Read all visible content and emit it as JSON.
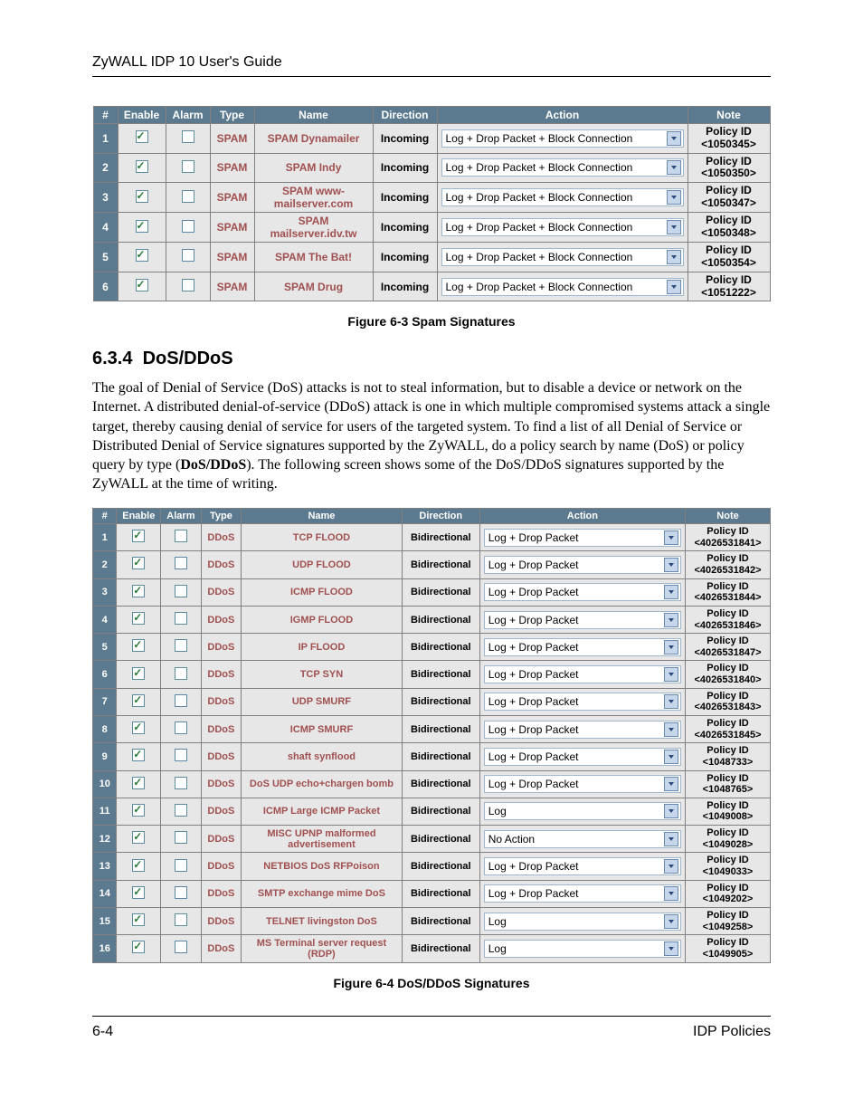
{
  "guide_title": "ZyWALL IDP 10 User's Guide",
  "headers": [
    "#",
    "Enable",
    "Alarm",
    "Type",
    "Name",
    "Direction",
    "Action",
    "Note"
  ],
  "spam_table": {
    "col_widths": {
      "num": 18,
      "enable": 44,
      "alarm": 40,
      "type": 40,
      "name": 122,
      "dir": 62,
      "action": 268,
      "note": 82
    },
    "rows": [
      {
        "n": "1",
        "type": "SPAM",
        "name": "SPAM Dynamailer",
        "dir": "Incoming",
        "action": "Log + Drop Packet + Block Connection",
        "note_id": "<1050345>"
      },
      {
        "n": "2",
        "type": "SPAM",
        "name": "SPAM Indy",
        "dir": "Incoming",
        "action": "Log + Drop Packet + Block Connection",
        "note_id": "<1050350>"
      },
      {
        "n": "3",
        "type": "SPAM",
        "name": "SPAM www-mailserver.com",
        "dir": "Incoming",
        "action": "Log + Drop Packet + Block Connection",
        "note_id": "<1050347>"
      },
      {
        "n": "4",
        "type": "SPAM",
        "name": "SPAM mailserver.idv.tw",
        "dir": "Incoming",
        "action": "Log + Drop Packet + Block Connection",
        "note_id": "<1050348>"
      },
      {
        "n": "5",
        "type": "SPAM",
        "name": "SPAM The Bat!",
        "dir": "Incoming",
        "action": "Log + Drop Packet + Block Connection",
        "note_id": "<1050354>"
      },
      {
        "n": "6",
        "type": "SPAM",
        "name": "SPAM Drug",
        "dir": "Incoming",
        "action": "Log + Drop Packet + Block Connection",
        "note_id": "<1051222>"
      }
    ]
  },
  "caption_spam": "Figure 6-3 Spam Signatures",
  "section_number": "6.3.4",
  "section_title": "DoS/DDoS",
  "paragraph": "The goal of Denial of Service (DoS) attacks is not to steal information, but to disable a device or network on the Internet. A distributed denial-of-service (DDoS) attack is one in which multiple compromised systems attack a single target, thereby causing denial of service for users of the targeted system. To find a list of all Denial of Service or Distributed Denial of Service signatures supported by the ZyWALL, do a policy search by name (DoS) or policy query by type (",
  "paragraph_bold": "DoS/DDoS",
  "paragraph_end": "). The following screen shows some of the DoS/DDoS signatures supported by the ZyWALL at the time of writing.",
  "ddos_table": {
    "col_widths": {
      "num": 16,
      "enable": 40,
      "alarm": 36,
      "type": 36,
      "name": 178,
      "dir": 78,
      "action": 234,
      "note": 86
    },
    "rows": [
      {
        "n": "1",
        "type": "DDoS",
        "name": "TCP FLOOD",
        "dir": "Bidirectional",
        "action": "Log + Drop Packet",
        "note_id": "<4026531841>"
      },
      {
        "n": "2",
        "type": "DDoS",
        "name": "UDP FLOOD",
        "dir": "Bidirectional",
        "action": "Log + Drop Packet",
        "note_id": "<4026531842>"
      },
      {
        "n": "3",
        "type": "DDoS",
        "name": "ICMP FLOOD",
        "dir": "Bidirectional",
        "action": "Log + Drop Packet",
        "note_id": "<4026531844>"
      },
      {
        "n": "4",
        "type": "DDoS",
        "name": "IGMP FLOOD",
        "dir": "Bidirectional",
        "action": "Log + Drop Packet",
        "note_id": "<4026531846>"
      },
      {
        "n": "5",
        "type": "DDoS",
        "name": "IP FLOOD",
        "dir": "Bidirectional",
        "action": "Log + Drop Packet",
        "note_id": "<4026531847>"
      },
      {
        "n": "6",
        "type": "DDoS",
        "name": "TCP SYN",
        "dir": "Bidirectional",
        "action": "Log + Drop Packet",
        "note_id": "<4026531840>"
      },
      {
        "n": "7",
        "type": "DDoS",
        "name": "UDP SMURF",
        "dir": "Bidirectional",
        "action": "Log + Drop Packet",
        "note_id": "<4026531843>"
      },
      {
        "n": "8",
        "type": "DDoS",
        "name": "ICMP SMURF",
        "dir": "Bidirectional",
        "action": "Log + Drop Packet",
        "note_id": "<4026531845>"
      },
      {
        "n": "9",
        "type": "DDoS",
        "name": "shaft synflood",
        "dir": "Bidirectional",
        "action": "Log + Drop Packet",
        "note_id": "<1048733>"
      },
      {
        "n": "10",
        "type": "DDoS",
        "name": "DoS UDP echo+chargen bomb",
        "dir": "Bidirectional",
        "action": "Log + Drop Packet",
        "note_id": "<1048765>"
      },
      {
        "n": "11",
        "type": "DDoS",
        "name": "ICMP Large ICMP Packet",
        "dir": "Bidirectional",
        "action": "Log",
        "note_id": "<1049008>"
      },
      {
        "n": "12",
        "type": "DDoS",
        "name": "MISC UPNP malformed advertisement",
        "dir": "Bidirectional",
        "action": "No Action",
        "note_id": "<1049028>"
      },
      {
        "n": "13",
        "type": "DDoS",
        "name": "NETBIOS DoS RFPoison",
        "dir": "Bidirectional",
        "action": "Log + Drop Packet",
        "note_id": "<1049033>"
      },
      {
        "n": "14",
        "type": "DDoS",
        "name": "SMTP exchange mime DoS",
        "dir": "Bidirectional",
        "action": "Log + Drop Packet",
        "note_id": "<1049202>"
      },
      {
        "n": "15",
        "type": "DDoS",
        "name": "TELNET livingston DoS",
        "dir": "Bidirectional",
        "action": "Log",
        "note_id": "<1049258>"
      },
      {
        "n": "16",
        "type": "DDoS",
        "name": "MS Terminal server request (RDP)",
        "dir": "Bidirectional",
        "action": "Log",
        "note_id": "<1049905>"
      }
    ]
  },
  "caption_ddos": "Figure 6-4 DoS/DDoS Signatures",
  "note_label": "Policy ID",
  "footer_left": "6-4",
  "footer_right": "IDP Policies",
  "colors": {
    "header_bg": "#5c7a8f",
    "header_fg": "#ffffff",
    "row_bg": "#e7e7e7",
    "type_fg": "#a05050",
    "border": "#808080",
    "dd_bg": "#c6d7eb",
    "dd_border": "#6a8ab0",
    "check_color": "#2a7a3a"
  }
}
